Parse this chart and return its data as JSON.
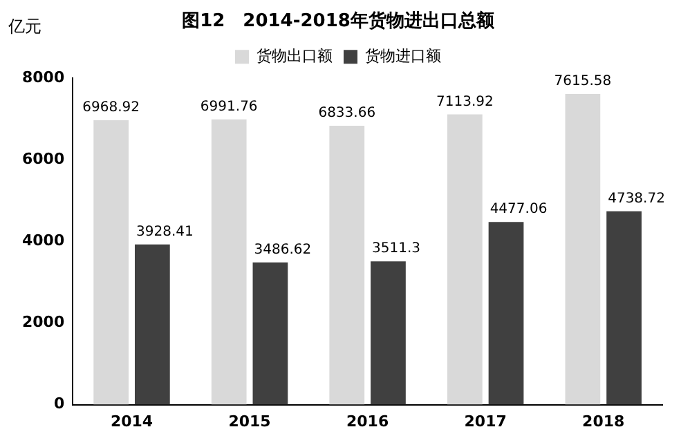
{
  "chart_data": {
    "type": "bar",
    "title": "图12　2014-2018年货物进出口总额",
    "ylabel": "亿元",
    "categories": [
      "2014",
      "2015",
      "2016",
      "2017",
      "2018"
    ],
    "series": [
      {
        "name": "货物出口额",
        "color": "#d9d9d9",
        "values": [
          6968.92,
          6991.76,
          6833.66,
          7113.92,
          7615.58
        ]
      },
      {
        "name": "货物进口额",
        "color": "#404040",
        "values": [
          3928.41,
          3486.62,
          3511.3,
          4477.06,
          4738.72
        ]
      }
    ],
    "ylim": [
      0,
      8000
    ],
    "yticks": [
      0,
      2000,
      4000,
      6000,
      8000
    ],
    "grid": false,
    "legend": "top left",
    "data_labels": true
  }
}
